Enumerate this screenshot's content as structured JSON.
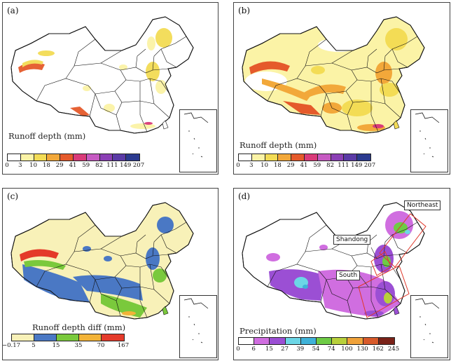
{
  "panels": {
    "a": {
      "label": "(a)",
      "colorbar_title": "Runoff depth (mm)",
      "ticks": [
        "0",
        "3",
        "10",
        "18",
        "29",
        "41",
        "59",
        "82",
        "111",
        "149",
        "207"
      ],
      "colors": [
        "#ffffff",
        "#fbf3a6",
        "#f3dc55",
        "#f2a83a",
        "#e55a2b",
        "#d93a79",
        "#c65ac2",
        "#8b3fb5",
        "#5a3aa6",
        "#2b3a8f"
      ]
    },
    "b": {
      "label": "(b)",
      "colorbar_title": "Runoff depth (mm)",
      "ticks": [
        "0",
        "3",
        "10",
        "18",
        "29",
        "41",
        "59",
        "82",
        "111",
        "149",
        "207"
      ],
      "colors": [
        "#ffffff",
        "#fbf3a6",
        "#f3dc55",
        "#f2a83a",
        "#e55a2b",
        "#d93a79",
        "#c65ac2",
        "#8b3fb5",
        "#5a3aa6",
        "#2b3a8f"
      ]
    },
    "c": {
      "label": "(c)",
      "colorbar_title": "Runoff depth diff (mm)",
      "ticks": [
        "−0.17",
        "5",
        "15",
        "35",
        "70",
        "167"
      ],
      "colors": [
        "#f8f1b8",
        "#4a78c4",
        "#7ac93c",
        "#f2b338",
        "#e43a2a"
      ]
    },
    "d": {
      "label": "(d)",
      "colorbar_title": "Precipitation (mm)",
      "ticks": [
        "0",
        "6",
        "15",
        "27",
        "39",
        "54",
        "74",
        "100",
        "130",
        "162",
        "245"
      ],
      "colors": [
        "#ffffff",
        "#d06ee0",
        "#9b4fd4",
        "#6cd6e6",
        "#3fb2d8",
        "#6ecb45",
        "#b8d03b",
        "#f0a23a",
        "#d85a2a",
        "#7a2218"
      ],
      "callouts": {
        "northeast": "Northeast",
        "shandong": "Shandong",
        "south": "South"
      }
    }
  }
}
